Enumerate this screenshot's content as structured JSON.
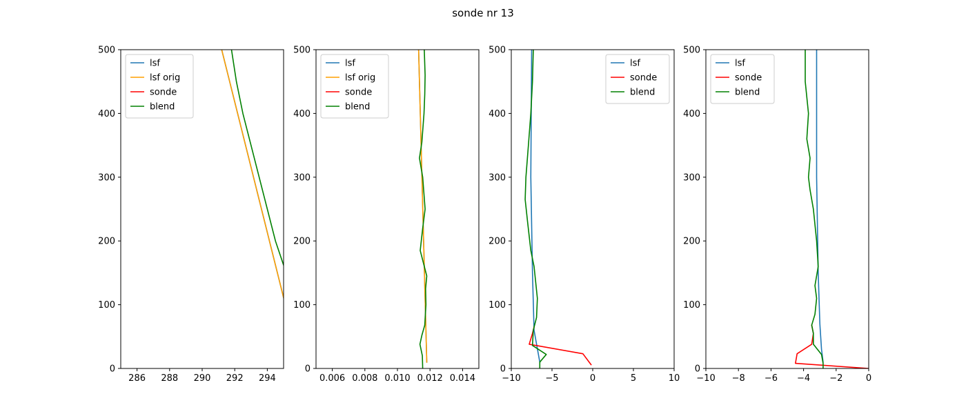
{
  "figure": {
    "title": "sonde nr 13"
  },
  "chart_data": [
    {
      "type": "line",
      "xlim": [
        285,
        295
      ],
      "ylim": [
        0,
        500
      ],
      "xticks": [
        286,
        288,
        290,
        292,
        294
      ],
      "xtick_labels": [
        "286",
        "288",
        "290",
        "292",
        "294"
      ],
      "yticks": [
        0,
        100,
        200,
        300,
        400,
        500
      ],
      "ytick_labels": [
        "0",
        "100",
        "200",
        "300",
        "400",
        "500"
      ],
      "grid": false,
      "legend_position": "top-left",
      "series": [
        {
          "name": "lsf",
          "color": "#1f77b4",
          "points": [
            [
              295.0,
              111
            ],
            [
              291.2,
              500
            ]
          ]
        },
        {
          "name": "lsf orig",
          "color": "#ff9f00",
          "points": [
            [
              295.0,
              111
            ],
            [
              291.2,
              500
            ]
          ]
        },
        {
          "name": "sonde",
          "color": "#ff0000",
          "points": []
        },
        {
          "name": "blend",
          "color": "#008000",
          "points": [
            [
              295.0,
              162
            ],
            [
              294.5,
              200
            ],
            [
              294.0,
              250
            ],
            [
              293.5,
              300
            ],
            [
              293.0,
              350
            ],
            [
              292.5,
              400
            ],
            [
              292.1,
              450
            ],
            [
              291.8,
              500
            ]
          ]
        }
      ]
    },
    {
      "type": "line",
      "xlim": [
        0.005,
        0.015
      ],
      "ylim": [
        0,
        500
      ],
      "xticks": [
        0.006,
        0.008,
        0.01,
        0.012,
        0.014
      ],
      "xtick_labels": [
        "0.006",
        "0.008",
        "0.010",
        "0.012",
        "0.014"
      ],
      "yticks": [
        0,
        100,
        200,
        300,
        400,
        500
      ],
      "ytick_labels": [
        "0",
        "100",
        "200",
        "300",
        "400",
        "500"
      ],
      "grid": false,
      "legend_position": "top-left",
      "series": [
        {
          "name": "lsf",
          "color": "#1f77b4",
          "points": [
            [
              0.0118,
              10
            ],
            [
              0.0113,
              500
            ]
          ]
        },
        {
          "name": "lsf orig",
          "color": "#ff9f00",
          "points": [
            [
              0.0118,
              10
            ],
            [
              0.0113,
              500
            ]
          ]
        },
        {
          "name": "sonde",
          "color": "#ff0000",
          "points": []
        },
        {
          "name": "blend",
          "color": "#008000",
          "points": [
            [
              0.01155,
              0
            ],
            [
              0.01153,
              20
            ],
            [
              0.01138,
              38
            ],
            [
              0.0115,
              52
            ],
            [
              0.01168,
              68
            ],
            [
              0.01175,
              100
            ],
            [
              0.01173,
              125
            ],
            [
              0.0118,
              145
            ],
            [
              0.0114,
              185
            ],
            [
              0.01155,
              220
            ],
            [
              0.0117,
              250
            ],
            [
              0.01155,
              300
            ],
            [
              0.01135,
              330
            ],
            [
              0.0115,
              355
            ],
            [
              0.01163,
              400
            ],
            [
              0.01168,
              430
            ],
            [
              0.0117,
              460
            ],
            [
              0.01165,
              500
            ]
          ]
        }
      ]
    },
    {
      "type": "line",
      "xlim": [
        -10,
        10
      ],
      "ylim": [
        0,
        500
      ],
      "xticks": [
        -10,
        -5,
        0,
        5,
        10
      ],
      "xtick_labels": [
        "−10",
        "−5",
        "0",
        "5",
        "10"
      ],
      "yticks": [
        0,
        100,
        200,
        300,
        400,
        500
      ],
      "ytick_labels": [
        "0",
        "100",
        "200",
        "300",
        "400",
        "500"
      ],
      "grid": false,
      "legend_position": "top-right",
      "series": [
        {
          "name": "lsf",
          "color": "#1f77b4",
          "points": [
            [
              -6.5,
              10
            ],
            [
              -7.2,
              60
            ],
            [
              -7.4,
              150
            ],
            [
              -7.6,
              300
            ],
            [
              -7.5,
              500
            ]
          ]
        },
        {
          "name": "sonde",
          "color": "#ff0000",
          "points": [
            [
              -0.2,
              6
            ],
            [
              -1.2,
              23
            ],
            [
              -7.8,
              38
            ],
            [
              -7.4,
              55
            ],
            [
              -7.2,
              65
            ]
          ]
        },
        {
          "name": "blend",
          "color": "#008000",
          "points": [
            [
              -6.5,
              0
            ],
            [
              -6.5,
              10
            ],
            [
              -5.7,
              22
            ],
            [
              -7.4,
              36
            ],
            [
              -7.3,
              60
            ],
            [
              -6.9,
              80
            ],
            [
              -6.8,
              110
            ],
            [
              -7.2,
              160
            ],
            [
              -7.6,
              185
            ],
            [
              -8.0,
              230
            ],
            [
              -8.3,
              265
            ],
            [
              -8.2,
              300
            ],
            [
              -7.9,
              350
            ],
            [
              -7.6,
              400
            ],
            [
              -7.4,
              450
            ],
            [
              -7.3,
              500
            ]
          ]
        }
      ]
    },
    {
      "type": "line",
      "xlim": [
        -10,
        0
      ],
      "ylim": [
        0,
        500
      ],
      "xticks": [
        -10,
        -8,
        -6,
        -4,
        -2,
        0
      ],
      "xtick_labels": [
        "−10",
        "−8",
        "−6",
        "−4",
        "−2",
        "0"
      ],
      "yticks": [
        0,
        100,
        200,
        300,
        400,
        500
      ],
      "ytick_labels": [
        "0",
        "100",
        "200",
        "300",
        "400",
        "500"
      ],
      "grid": false,
      "legend_position": "top-left",
      "series": [
        {
          "name": "lsf",
          "color": "#1f77b4",
          "points": [
            [
              -2.8,
              10
            ],
            [
              -2.9,
              30
            ],
            [
              -3.0,
              70
            ],
            [
              -3.1,
              150
            ],
            [
              -3.2,
              300
            ],
            [
              -3.2,
              500
            ]
          ]
        },
        {
          "name": "sonde",
          "color": "#ff0000",
          "points": [
            [
              0,
              0
            ],
            [
              -4.5,
              8
            ],
            [
              -4.4,
              23
            ],
            [
              -3.5,
              38
            ],
            [
              -3.4,
              55
            ],
            [
              -3.5,
              68
            ]
          ]
        },
        {
          "name": "blend",
          "color": "#008000",
          "points": [
            [
              -2.8,
              0
            ],
            [
              -2.8,
              8
            ],
            [
              -2.9,
              22
            ],
            [
              -3.4,
              38
            ],
            [
              -3.4,
              55
            ],
            [
              -3.5,
              68
            ],
            [
              -3.3,
              85
            ],
            [
              -3.2,
              110
            ],
            [
              -3.3,
              130
            ],
            [
              -3.1,
              160
            ],
            [
              -3.2,
              200
            ],
            [
              -3.4,
              250
            ],
            [
              -3.6,
              280
            ],
            [
              -3.7,
              300
            ],
            [
              -3.6,
              330
            ],
            [
              -3.8,
              360
            ],
            [
              -3.7,
              400
            ],
            [
              -3.9,
              450
            ],
            [
              -3.9,
              500
            ]
          ]
        }
      ]
    }
  ]
}
